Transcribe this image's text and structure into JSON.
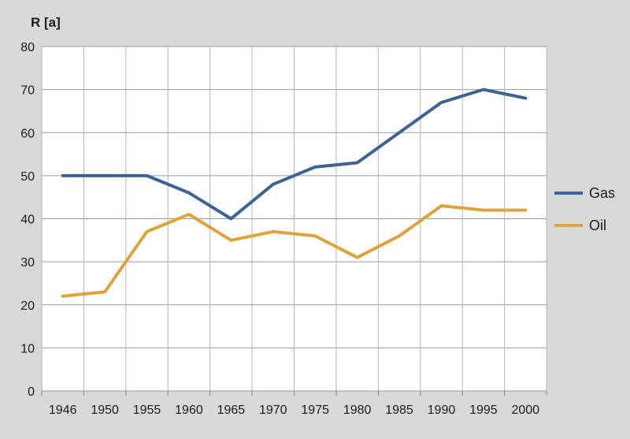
{
  "chart_data": {
    "type": "line",
    "ylabel": "R [a]",
    "xlabel": "",
    "x": [
      "1946",
      "1950",
      "1955",
      "1960",
      "1965",
      "1970",
      "1975",
      "1980",
      "1985",
      "1990",
      "1995",
      "2000"
    ],
    "ylim": [
      0,
      80
    ],
    "yticks": [
      0,
      10,
      20,
      30,
      40,
      50,
      60,
      70,
      80
    ],
    "grid": true,
    "legend_position": "right",
    "series": [
      {
        "name": "Gas",
        "color": "#3d6396",
        "values": [
          50,
          50,
          50,
          46,
          40,
          48,
          52,
          53,
          60,
          67,
          70,
          68
        ]
      },
      {
        "name": "Oil",
        "color": "#e0a33b",
        "values": [
          22,
          23,
          37,
          41,
          35,
          37,
          36,
          31,
          36,
          43,
          42,
          42
        ]
      }
    ]
  }
}
